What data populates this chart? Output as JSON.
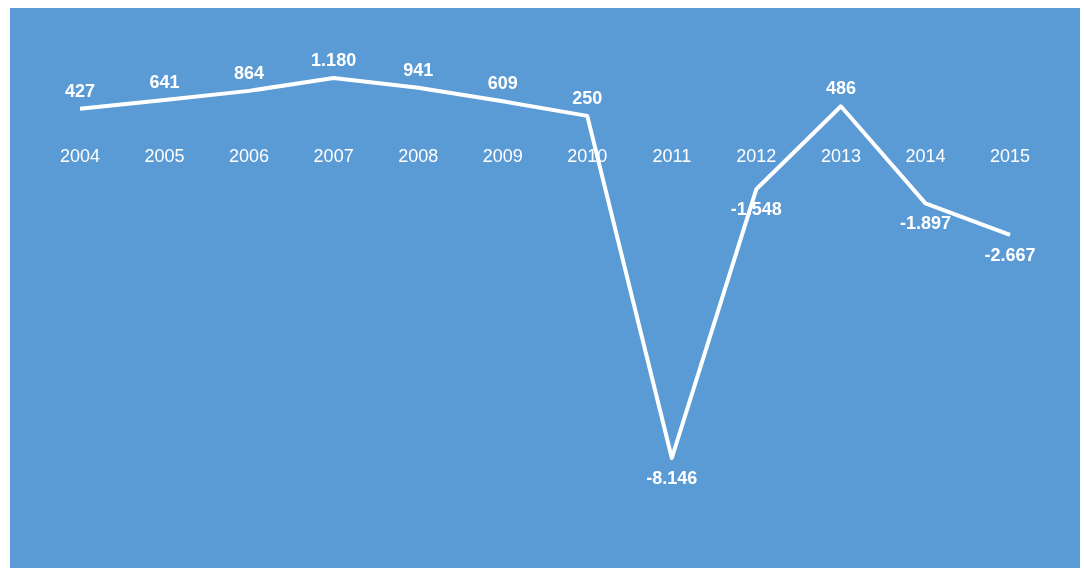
{
  "chart_data": {
    "type": "line",
    "categories": [
      "2004",
      "2005",
      "2006",
      "2007",
      "2008",
      "2009",
      "2010",
      "2011",
      "2012",
      "2013",
      "2014",
      "2015"
    ],
    "series": [
      {
        "color": "#ffffff",
        "values": [
          427,
          641,
          864,
          1180,
          941,
          609,
          250,
          -8146,
          -1548,
          486,
          -1897,
          -2667
        ],
        "value_labels": [
          "427",
          "641",
          "864",
          "1.180",
          "941",
          "609",
          "250",
          "-8.146",
          "-1.548",
          "486",
          "-1.897",
          "-2.667"
        ]
      }
    ],
    "marker": "none",
    "grid": false,
    "legend": false
  }
}
